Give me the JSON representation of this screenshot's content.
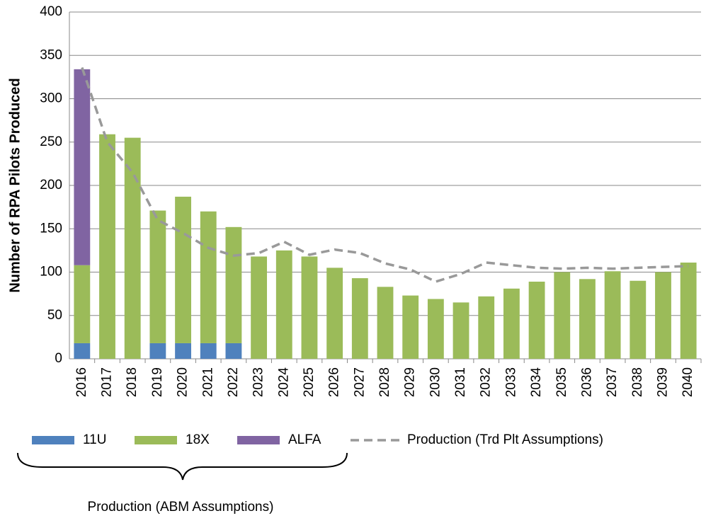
{
  "chart_data": {
    "type": "bar",
    "stacked": true,
    "y_label": "Number of RPA Pilots Produced",
    "annotation": "Production (ABM Assumptions)",
    "categories": [
      "2016",
      "2017",
      "2018",
      "2019",
      "2020",
      "2021",
      "2022",
      "2023",
      "2024",
      "2025",
      "2026",
      "2027",
      "2028",
      "2029",
      "2030",
      "2031",
      "2032",
      "2033",
      "2034",
      "2035",
      "2036",
      "2037",
      "2038",
      "2039",
      "2040"
    ],
    "series": [
      {
        "name": "11U",
        "color": "#4f81bd",
        "values": [
          18,
          null,
          null,
          18,
          18,
          18,
          18,
          null,
          null,
          null,
          null,
          null,
          null,
          null,
          null,
          null,
          null,
          null,
          null,
          null,
          null,
          null,
          null,
          null,
          null
        ]
      },
      {
        "name": "18X",
        "color": "#9bbb59",
        "values": [
          90,
          259,
          255,
          153,
          169,
          152,
          134,
          118,
          125,
          118,
          105,
          93,
          83,
          73,
          69,
          65,
          72,
          81,
          89,
          100,
          92,
          101,
          90,
          100,
          111
        ]
      },
      {
        "name": "ALFA",
        "color": "#8064a2",
        "values": [
          226,
          null,
          null,
          null,
          null,
          null,
          null,
          null,
          null,
          null,
          null,
          null,
          null,
          null,
          null,
          null,
          null,
          null,
          null,
          null,
          null,
          null,
          null,
          null,
          null
        ]
      },
      {
        "name": "Production (Trd Plt Assumptions)",
        "color": "#999999",
        "type": "line",
        "dashed": true,
        "values": [
          336,
          250,
          215,
          160,
          145,
          128,
          119,
          122,
          135,
          120,
          126,
          122,
          110,
          103,
          89,
          98,
          111,
          108,
          105,
          104,
          105,
          104,
          105,
          106,
          107
        ]
      }
    ],
    "ylim": [
      0,
      400
    ],
    "yticks": [
      0,
      50,
      100,
      150,
      200,
      250,
      300,
      350,
      400
    ],
    "grid": true,
    "legend": "bottom"
  }
}
